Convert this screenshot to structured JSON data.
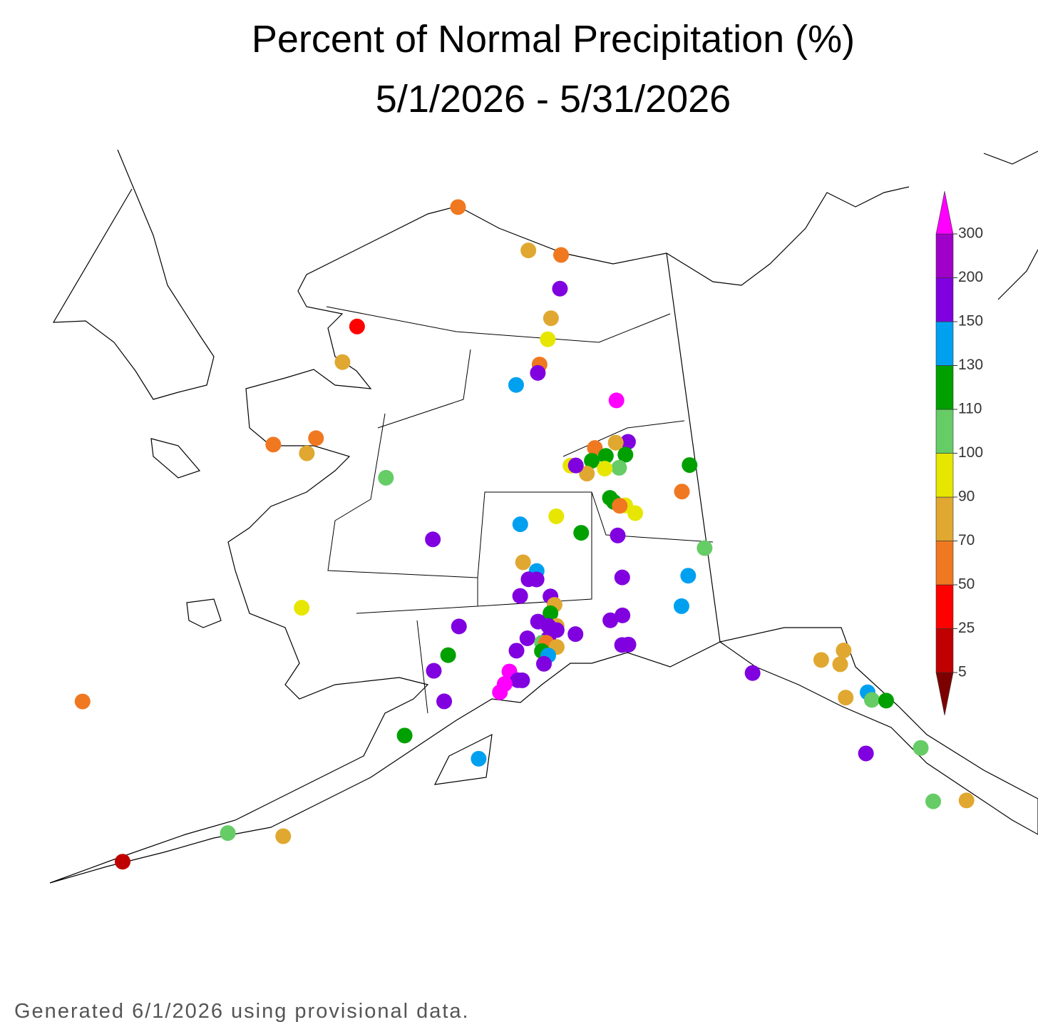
{
  "chart_data": {
    "type": "station-map",
    "title": "Percent of Normal Precipitation (%)",
    "subtitle": "5/1/2026 - 5/31/2026",
    "footnote": "Generated 6/1/2026 using provisional data.",
    "levels": [
      5,
      25,
      50,
      70,
      90,
      100,
      110,
      130,
      150,
      200,
      300
    ],
    "colors": [
      "#7d0000",
      "#c00000",
      "#ff0000",
      "#f07820",
      "#e0a830",
      "#e6e600",
      "#66cc66",
      "#00a000",
      "#00a0f0",
      "#8000e0",
      "#a000c8",
      "#ff00ff"
    ],
    "stations": {
      "lon": [
        -157.0,
        -151.7,
        -149.4,
        -149.5,
        -150.1,
        -150.3,
        -162.4,
        -162.8,
        -150.8,
        -150.9,
        -152.2,
        -146.2,
        -165.5,
        -163.3,
        -163.6,
        -159.1,
        -145.7,
        -146.4,
        -147.6,
        -147.0,
        -147.8,
        -145.9,
        -146.3,
        -147.1,
        -148.1,
        -149.0,
        -148.7,
        -142.4,
        -143.0,
        -146.9,
        -146.7,
        -146.1,
        -146.4,
        -145.6,
        -151.7,
        -149.8,
        -148.5,
        -146.6,
        -156.2,
        -142.2,
        -151.5,
        -150.8,
        -151.2,
        -150.8,
        -143.2,
        -146.5,
        -151.6,
        -150.1,
        -143.7,
        -162.1,
        -154.5,
        -149.9,
        -150.1,
        -149.8,
        -150.7,
        -150.2,
        -150.2,
        -149.8,
        -147.2,
        -146.6,
        -151.2,
        -150.5,
        -150.3,
        -149.8,
        -148.9,
        -151.7,
        -150.5,
        -150.2,
        -146.7,
        -146.4,
        -154.9,
        -150.4,
        -152.0,
        -151.6,
        -151.4,
        -152.2,
        -152.4,
        -155.5,
        -140.8,
        -137.6,
        -136.5,
        -136.8,
        -135.9,
        -135.8,
        -135.2,
        -136.9,
        -154.9,
        -170.4,
        -156.5,
        -136.6,
        -134.3,
        -153.2,
        -134.4,
        -133.1,
        -163.1,
        -160.9,
        -166.8
      ],
      "lat": [
        71.0,
        70.1,
        70.0,
        69.2,
        68.5,
        68.0,
        67.8,
        66.9,
        67.4,
        67.2,
        66.9,
        66.5,
        64.6,
        65.0,
        64.6,
        64.4,
        65.5,
        65.5,
        65.4,
        65.2,
        65.1,
        65.2,
        64.9,
        64.9,
        64.8,
        65.0,
        65.0,
        64.8,
        64.2,
        64.2,
        64.1,
        64.0,
        64.0,
        63.8,
        63.6,
        63.8,
        63.4,
        63.3,
        63.1,
        62.8,
        62.7,
        62.5,
        62.3,
        62.3,
        62.2,
        62.3,
        61.9,
        61.9,
        61.5,
        61.0,
        61.1,
        61.7,
        61.5,
        61.2,
        61.3,
        61.2,
        60.9,
        61.1,
        61.3,
        61.4,
        60.9,
        60.8,
        60.8,
        60.7,
        61.0,
        60.6,
        60.6,
        60.5,
        60.7,
        60.7,
        60.4,
        60.3,
        60.1,
        59.9,
        59.9,
        59.8,
        59.6,
        60.0,
        59.7,
        59.7,
        59.8,
        59.5,
        58.7,
        58.5,
        58.4,
        58.7,
        59.3,
        57.4,
        58.4,
        57.3,
        57.1,
        58.0,
        55.8,
        55.6,
        55.4,
        55.6,
        54.1
      ],
      "values": [
        60,
        80,
        60,
        175,
        80,
        95,
        40,
        80,
        60,
        175,
        140,
        320,
        60,
        60,
        80,
        105,
        175,
        80,
        60,
        120,
        120,
        120,
        105,
        95,
        80,
        95,
        175,
        120,
        60,
        120,
        120,
        95,
        60,
        95,
        140,
        95,
        120,
        175,
        175,
        105,
        80,
        140,
        175,
        175,
        140,
        175,
        175,
        175,
        140,
        95,
        175,
        80,
        120,
        80,
        175,
        175,
        175,
        175,
        175,
        175,
        175,
        105,
        60,
        80,
        175,
        175,
        120,
        140,
        175,
        175,
        120,
        175,
        320,
        175,
        175,
        320,
        320,
        175,
        175,
        80,
        80,
        80,
        140,
        105,
        120,
        80,
        175,
        60,
        120,
        175,
        105,
        140,
        105,
        80,
        105,
        80,
        15
      ]
    }
  }
}
